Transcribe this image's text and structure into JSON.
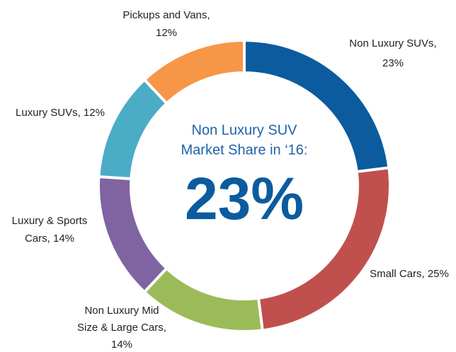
{
  "chart_data": {
    "type": "donut",
    "labels": [
      [
        "Non Luxury SUVs,",
        "23%"
      ],
      [
        "Small Cars, 25%"
      ],
      [
        "Non Luxury Mid",
        "Size & Large Cars,",
        "14%"
      ],
      [
        "Luxury & Sports",
        "Cars, 14%"
      ],
      [
        "Luxury SUVs, 12%"
      ],
      [
        "Pickups and Vans,",
        "12%"
      ]
    ],
    "values": [
      23,
      25,
      14,
      14,
      12,
      12
    ],
    "colors": [
      "#0b5b9e",
      "#c0504d",
      "#9bbb59",
      "#8064a2",
      "#4bacc6",
      "#f79646"
    ],
    "center_title": [
      "Non Luxury SUV",
      "Market Share in ‘16:"
    ],
    "center_value": "23%"
  }
}
